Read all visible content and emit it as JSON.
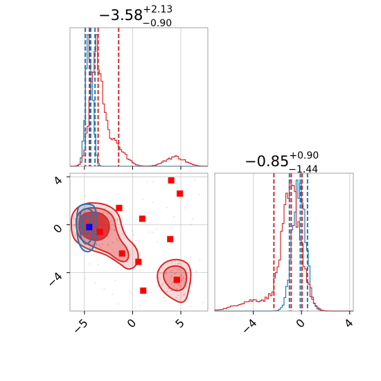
{
  "colors": {
    "red": "#d62728",
    "blue": "#1f77b4",
    "square": "#ff0000",
    "truth": "#0000ff"
  },
  "titles": {
    "p1": {
      "base": "−3.58",
      "sup": "+2.13",
      "sub": "−0.90"
    },
    "p2": {
      "base": "−0.85",
      "sup": "+0.90",
      "sub": "−1.44"
    }
  },
  "ticks": {
    "p1_y": [
      {
        "value": 4,
        "label": "4"
      },
      {
        "value": 0,
        "label": "0"
      },
      {
        "value": -4,
        "label": "−4"
      }
    ],
    "p1_x": [
      {
        "value": -5,
        "label": "−5"
      },
      {
        "value": 0,
        "label": "0"
      },
      {
        "value": 5,
        "label": "5"
      }
    ],
    "p2_x": [
      {
        "value": -4,
        "label": "−4"
      },
      {
        "value": 0,
        "label": "0"
      },
      {
        "value": 4,
        "label": "4"
      }
    ]
  },
  "chart_data": {
    "type": "corner",
    "panels": [
      {
        "id": "marginal-p1",
        "type": "histogram",
        "xlim": [
          -6.5,
          7.8
        ],
        "series": [
          {
            "color": "blue",
            "peak_x": -4.5,
            "quantiles": [
              -4.9,
              -4.35,
              -3.9
            ]
          },
          {
            "color": "red",
            "peak_x": -3.8,
            "quantiles": [
              -4.48,
              -3.58,
              -1.45
            ]
          }
        ]
      },
      {
        "id": "marginal-p2",
        "type": "histogram",
        "xlim": [
          -7.2,
          4.3
        ],
        "series": [
          {
            "color": "blue",
            "peak_x": -0.2,
            "quantiles": [
              -1.0,
              -0.1,
              0.5
            ]
          },
          {
            "color": "red",
            "peak_x": -0.8,
            "quantiles": [
              -2.29,
              -0.85,
              0.05
            ]
          }
        ]
      },
      {
        "id": "joint-p1-p2",
        "type": "scatter",
        "xlim": [
          -6.5,
          7.8
        ],
        "ylim": [
          -7.2,
          4.3
        ],
        "squares": [
          [
            4.0,
            3.7
          ],
          [
            4.9,
            2.6
          ],
          [
            -1.4,
            1.4
          ],
          [
            1.0,
            0.5
          ],
          [
            -3.4,
            -0.6
          ],
          [
            3.9,
            -1.2
          ],
          [
            -1.1,
            -2.4
          ],
          [
            0.6,
            -3.1
          ],
          [
            4.6,
            -4.6
          ],
          [
            1.1,
            -5.5
          ]
        ],
        "truth": [
          -4.5,
          -0.2
        ]
      }
    ]
  }
}
